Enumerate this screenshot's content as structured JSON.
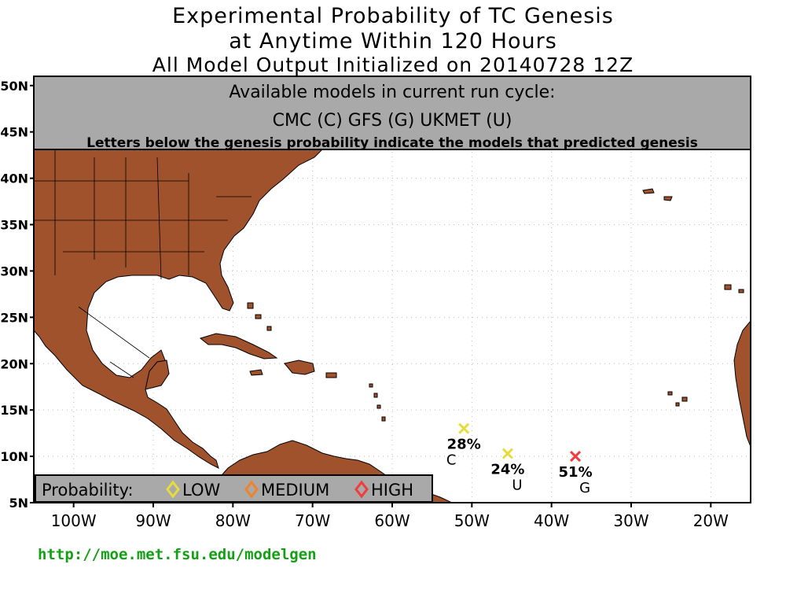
{
  "title": {
    "line1": "Experimental Probability of TC Genesis",
    "line2": "at Anytime Within 120 Hours",
    "line3": "All Model Output Initialized on 20140728 12Z"
  },
  "info_box": {
    "heading": "Available models in current run cycle:",
    "models_line": "CMC (C) GFS (G)  UKMET (U)",
    "note": "Letters below the genesis probability indicate the models that predicted genesis"
  },
  "legend": {
    "label": "Probability:",
    "items": [
      {
        "label": "LOW",
        "color": "#e6dc3c"
      },
      {
        "label": "MEDIUM",
        "color": "#f08228"
      },
      {
        "label": "HIGH",
        "color": "#f03c3c"
      }
    ]
  },
  "axes": {
    "lat_labels": [
      "50N",
      "45N",
      "40N",
      "35N",
      "30N",
      "25N",
      "20N",
      "15N",
      "10N",
      "5N"
    ],
    "lon_labels": [
      "100W",
      "90W",
      "80W",
      "70W",
      "60W",
      "50W",
      "40W",
      "30W",
      "20W"
    ],
    "lon_range": [
      -105,
      -15
    ],
    "lat_range": [
      5,
      51
    ]
  },
  "genesis_points": [
    {
      "lon": -51,
      "lat": 13,
      "probability": "28%",
      "models": "C",
      "level": "LOW",
      "color": "#e6dc3c"
    },
    {
      "lon": -45.5,
      "lat": 10.3,
      "probability": "24%",
      "models": "U",
      "level": "LOW",
      "color": "#e6dc3c"
    },
    {
      "lon": -37,
      "lat": 10,
      "probability": "51%",
      "models": "G",
      "level": "HIGH",
      "color": "#f03c3c"
    }
  ],
  "colors": {
    "land": "#a0522d",
    "box_fill": "#a9a9a9",
    "url": "#14a014"
  },
  "url": "http://moe.met.fsu.edu/modelgen"
}
